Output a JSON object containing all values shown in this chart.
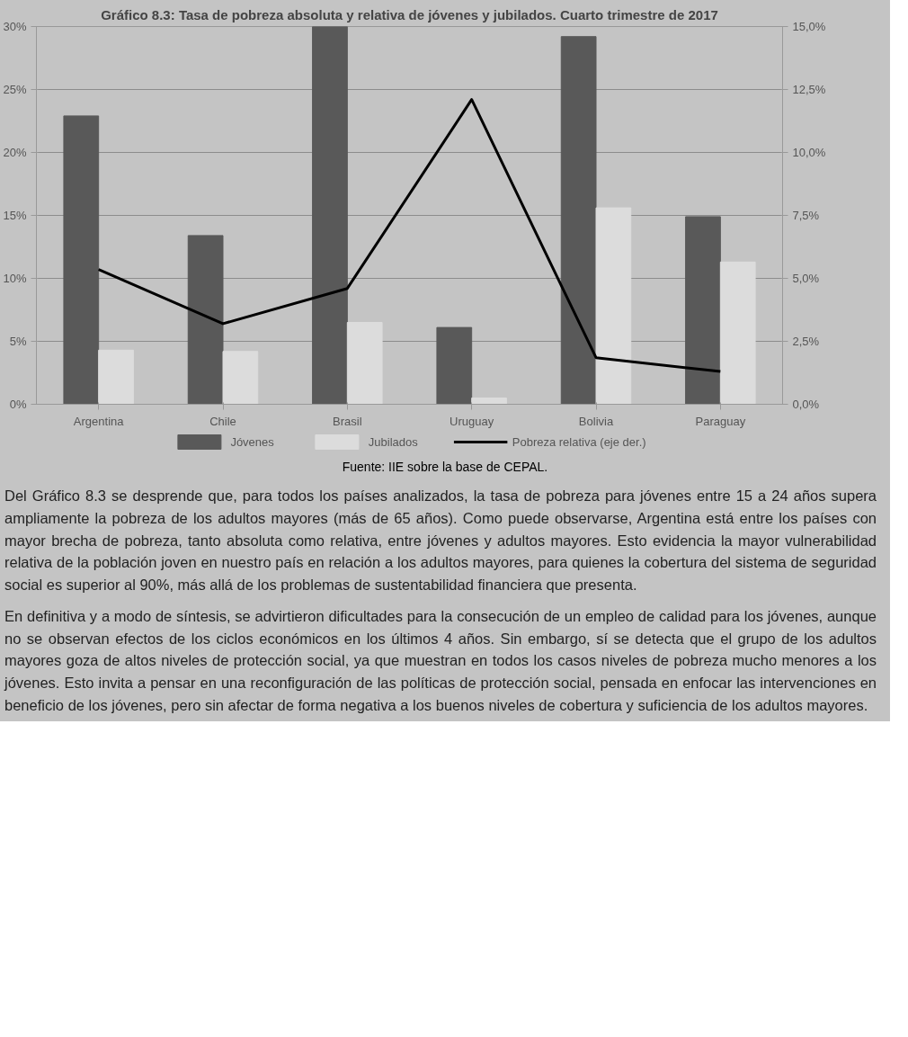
{
  "chart_data": {
    "type": "bar",
    "title": "Gráfico 8.3: Tasa de pobreza absoluta y relativa de jóvenes y jubilados. Cuarto trimestre de 2017",
    "categories": [
      "Argentina",
      "Chile",
      "Brasil",
      "Uruguay",
      "Bolivia",
      "Paraguay"
    ],
    "series": [
      {
        "name": "Jóvenes",
        "color": "#595959",
        "values": [
          22.9,
          13.4,
          30.0,
          6.1,
          29.2,
          14.9
        ]
      },
      {
        "name": "Jubilados",
        "color": "#dcdcdc",
        "values": [
          4.3,
          4.2,
          6.5,
          0.5,
          15.6,
          11.3
        ]
      },
      {
        "name": "Pobreza relativa (eje der.)",
        "color": "#000000",
        "type": "line",
        "axis": "y2",
        "values": [
          5.35,
          3.2,
          4.6,
          12.1,
          1.85,
          1.3
        ]
      }
    ],
    "ylim": [
      0,
      30
    ],
    "yticks": [
      {
        "value": 0,
        "label": "0%"
      },
      {
        "value": 5,
        "label": "5%"
      },
      {
        "value": 10,
        "label": "10%"
      },
      {
        "value": 15,
        "label": "15%"
      },
      {
        "value": 20,
        "label": "20%"
      },
      {
        "value": 25,
        "label": "25%"
      },
      {
        "value": 30,
        "label": "30%"
      }
    ],
    "y2lim": [
      0,
      15
    ],
    "y2ticks": [
      {
        "value": 0,
        "label": "0,0%"
      },
      {
        "value": 2.5,
        "label": "2,5%"
      },
      {
        "value": 5,
        "label": "5,0%"
      },
      {
        "value": 7.5,
        "label": "7,5%"
      },
      {
        "value": 10,
        "label": "10,0%"
      },
      {
        "value": 12.5,
        "label": "12,5%"
      },
      {
        "value": 15,
        "label": "15,0%"
      }
    ],
    "grid": "y",
    "legend": "bottom",
    "line_style": "solid",
    "annotations": [
      "Fuente: IIE sobre la base de CEPAL.",
      "Del Gráfico 8.3 se desprende que, para todos los países analizados, la tasa de pobreza para jóvenes entre 15 a 24 años supera ampliamente la pobreza de los adultos mayores (más de 65 años). Como puede observarse, Argentina está entre los países con mayor brecha de pobreza, tanto absoluta como relativa, entre jóvenes y adultos mayores. Esto evidencia la mayor vulnerabilidad relativa de la población joven en nuestro país en relación a los adultos mayores, para quienes la cobertura del sistema de seguridad social es superior al 90%, más allá de los problemas de sustentabilidad financiera que presenta.",
      "En definitiva y a modo de síntesis, se advirtieron dificultades para la consecución de un empleo de calidad para los jóvenes, aunque no se observan efectos de los ciclos económicos en los últimos 4 años. Sin embargo, sí se detecta que el grupo de los adultos mayores goza de altos niveles de protección social, ya que muestran en todos los casos niveles de pobreza mucho menores a los jóvenes. Esto invita a pensar en una reconfiguración de las políticas de protección social, pensada en enfocar las intervenciones en beneficio de los jóvenes, pero sin afectar de forma negativa a los buenos niveles de cobertura y suficiencia de los adultos mayores."
    ]
  }
}
